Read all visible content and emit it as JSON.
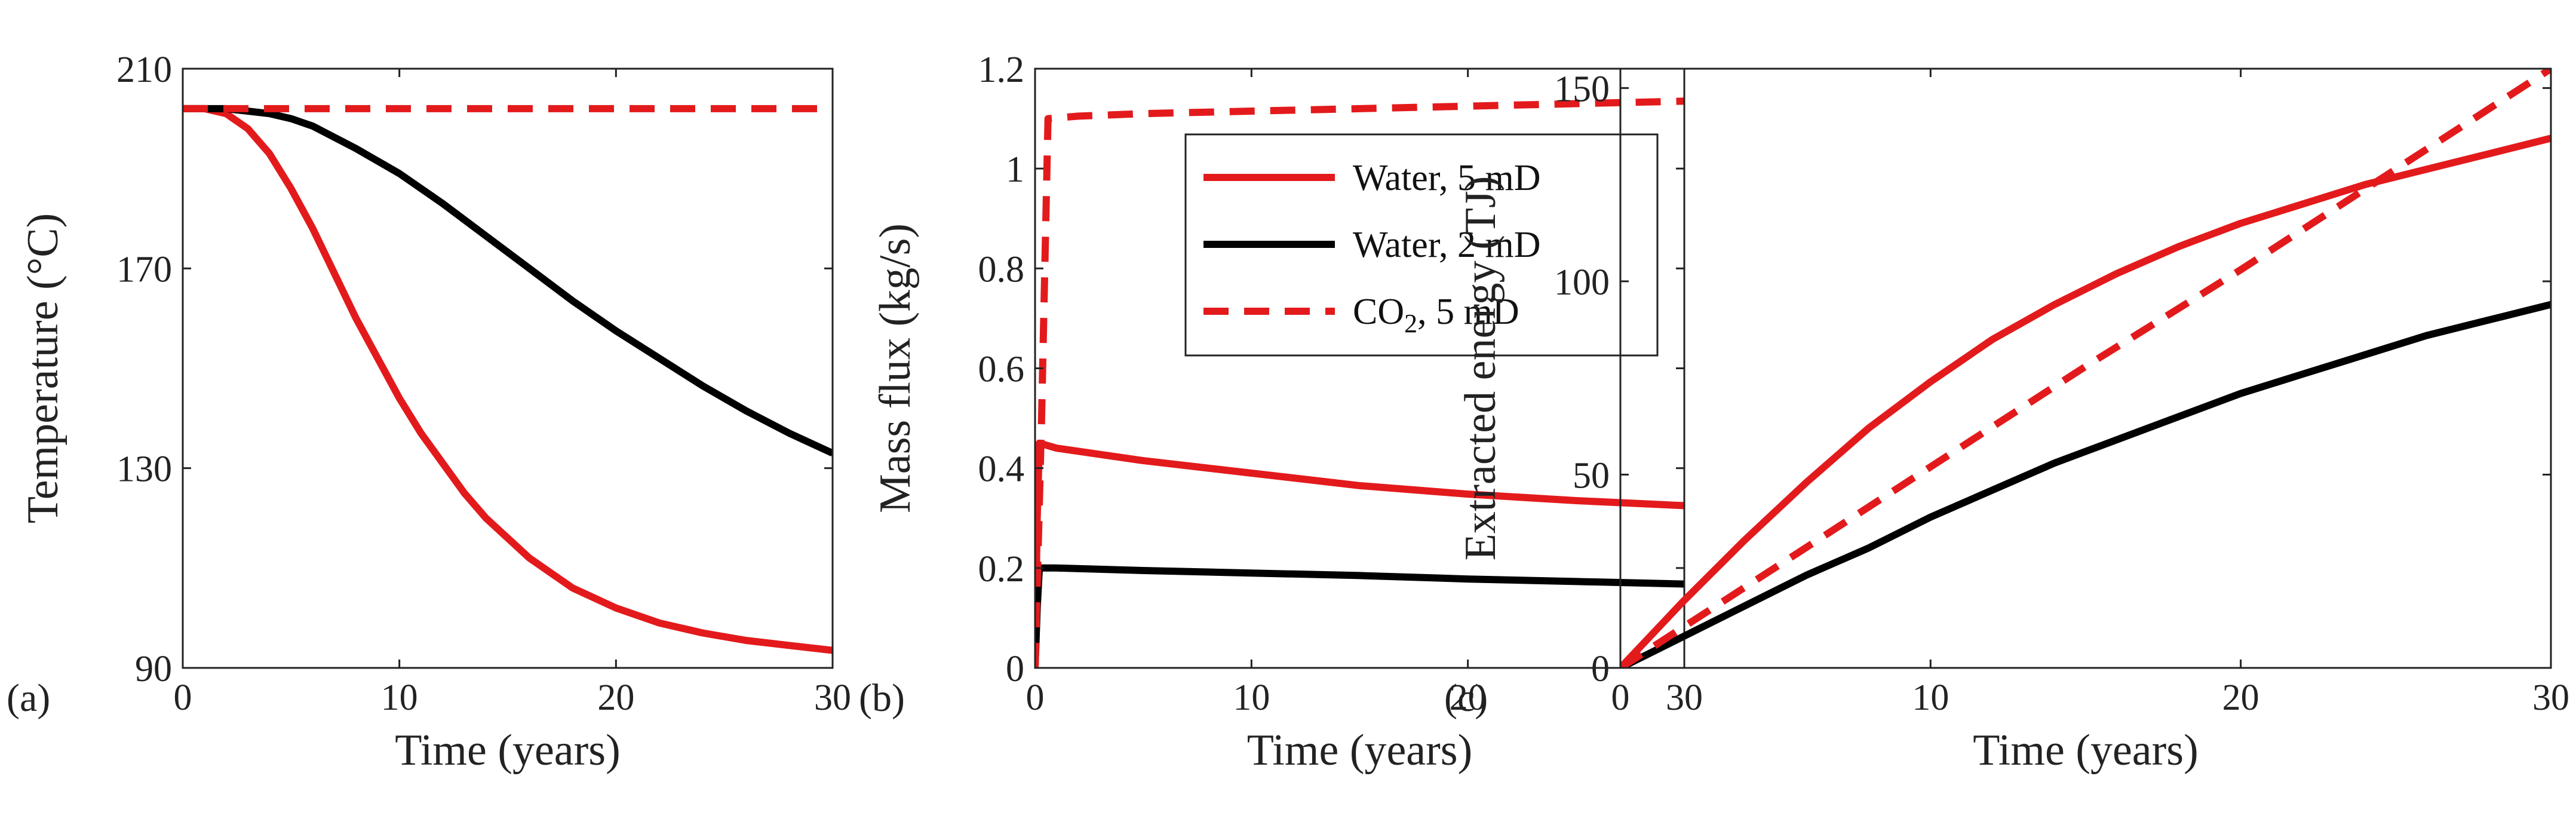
{
  "chart_data": [
    {
      "type": "line",
      "panel_label": "(a)",
      "xlabel": "Time (years)",
      "ylabel": "Temperature (°C)",
      "xlim": [
        0,
        30
      ],
      "ylim": [
        90,
        210
      ],
      "xticks": [
        0,
        10,
        20,
        30
      ],
      "yticks": [
        90,
        130,
        170,
        210
      ],
      "series": [
        {
          "name": "Water, 5 mD",
          "color": "#e31a1c",
          "dash": "solid",
          "x": [
            0,
            1,
            2,
            3,
            4,
            5,
            6,
            7,
            8,
            9,
            10,
            11,
            12,
            13,
            14,
            15,
            16,
            17,
            18,
            19,
            20,
            22,
            24,
            26,
            28,
            30
          ],
          "y": [
            202,
            202,
            201,
            198,
            193,
            186,
            178,
            169,
            160,
            152,
            144,
            137,
            131,
            125,
            120,
            116,
            112,
            109,
            106,
            104,
            102,
            99,
            97,
            95.5,
            94.5,
            93.5
          ]
        },
        {
          "name": "Water, 2 mD",
          "color": "#000000",
          "dash": "solid",
          "x": [
            0,
            2,
            3,
            4,
            5,
            6,
            8,
            10,
            12,
            14,
            16,
            18,
            20,
            22,
            24,
            26,
            28,
            30
          ],
          "y": [
            202,
            202,
            201.5,
            201,
            200,
            198.5,
            194,
            189,
            183,
            176.5,
            170,
            163.5,
            157.5,
            152,
            146.5,
            141.5,
            137,
            133
          ]
        },
        {
          "name": "CO2, 5 mD",
          "color": "#e31a1c",
          "dash": "dashed",
          "x": [
            0,
            30
          ],
          "y": [
            202,
            202
          ]
        }
      ]
    },
    {
      "type": "line",
      "panel_label": "(b)",
      "xlabel": "Time (years)",
      "ylabel": "Mass flux (kg/s)",
      "xlim": [
        0,
        30
      ],
      "ylim": [
        0,
        1.2
      ],
      "xticks": [
        0,
        10,
        20,
        30
      ],
      "yticks": [
        0,
        0.2,
        0.4,
        0.6,
        0.8,
        1,
        1.2
      ],
      "ytick_labels": [
        "0",
        "0.2",
        "0.4",
        "0.6",
        "0.8",
        "1",
        "1.2"
      ],
      "series": [
        {
          "name": "Water, 5 mD",
          "color": "#e31a1c",
          "dash": "solid",
          "x": [
            0,
            0.1,
            0.2,
            1,
            5,
            10,
            15,
            20,
            25,
            30
          ],
          "y": [
            0,
            0.3,
            0.45,
            0.44,
            0.415,
            0.39,
            0.365,
            0.348,
            0.335,
            0.325
          ]
        },
        {
          "name": "Water, 2 mD",
          "color": "#000000",
          "dash": "solid",
          "x": [
            0,
            0.1,
            0.2,
            1,
            5,
            10,
            15,
            20,
            25,
            30
          ],
          "y": [
            0,
            0.12,
            0.2,
            0.2,
            0.195,
            0.19,
            0.185,
            0.178,
            0.173,
            0.168
          ]
        },
        {
          "name": "CO2, 5 mD",
          "color": "#e31a1c",
          "dash": "dashed",
          "x": [
            0,
            0.3,
            0.6,
            2,
            5,
            10,
            15,
            20,
            25,
            30
          ],
          "y": [
            0,
            0.5,
            1.1,
            1.105,
            1.11,
            1.115,
            1.12,
            1.125,
            1.13,
            1.135
          ]
        }
      ],
      "legend": {
        "placement": "upper-right",
        "entries": [
          {
            "label": "Water, 5 mD",
            "color": "#e31a1c",
            "dash": "solid"
          },
          {
            "label": "Water, 2 mD",
            "color": "#000000",
            "dash": "solid"
          },
          {
            "label_main": "CO",
            "label_sub": "2",
            "label_rest": ", 5 mD",
            "color": "#e31a1c",
            "dash": "dashed"
          }
        ]
      }
    },
    {
      "type": "line",
      "panel_label": "(c)",
      "xlabel": "Time (years)",
      "ylabel": "Extracted energy (TJ)",
      "xlim": [
        0,
        30
      ],
      "ylim": [
        0,
        155
      ],
      "xticks": [
        0,
        10,
        20,
        30
      ],
      "yticks": [
        0,
        50,
        100,
        150
      ],
      "series": [
        {
          "name": "Water, 5 mD",
          "color": "#e31a1c",
          "dash": "solid",
          "x": [
            0,
            2,
            4,
            6,
            8,
            10,
            12,
            14,
            16,
            18,
            20,
            22,
            24,
            26,
            28,
            30
          ],
          "y": [
            0,
            17,
            33,
            48,
            62,
            74,
            85,
            94,
            102,
            109,
            115,
            120,
            125,
            129,
            133,
            137
          ]
        },
        {
          "name": "Water, 2 mD",
          "color": "#000000",
          "dash": "solid",
          "x": [
            0,
            2,
            4,
            6,
            8,
            10,
            12,
            14,
            16,
            18,
            20,
            22,
            24,
            26,
            28,
            30
          ],
          "y": [
            0,
            8,
            16,
            24,
            31,
            39,
            46,
            53,
            59,
            65,
            71,
            76,
            81,
            86,
            90,
            94
          ]
        },
        {
          "name": "CO2, 5 mD",
          "color": "#e31a1c",
          "dash": "dashed",
          "x": [
            0,
            5,
            10,
            15,
            20,
            25,
            30
          ],
          "y": [
            0,
            26,
            52,
            78,
            103,
            129,
            155
          ]
        }
      ]
    }
  ]
}
